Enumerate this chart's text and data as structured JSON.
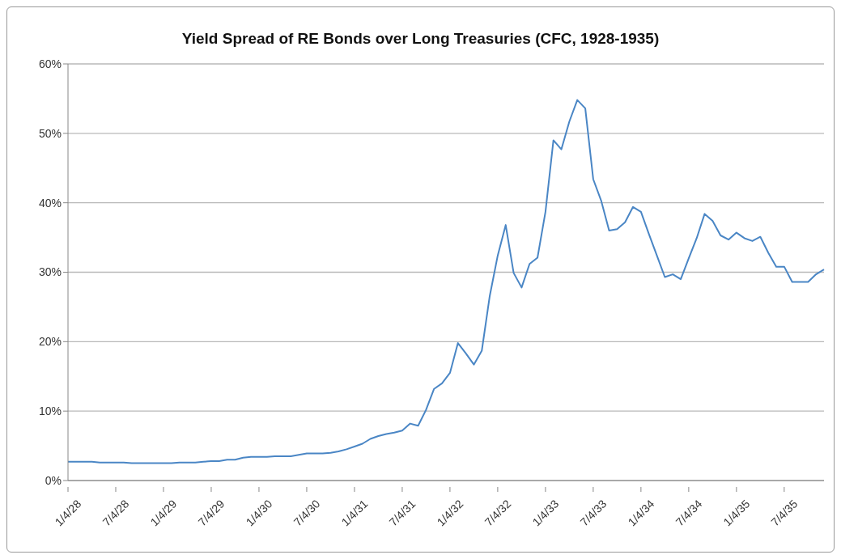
{
  "chart_data": {
    "type": "line",
    "title": "Yield Spread of RE Bonds over Long Treasuries (CFC, 1928-1935)",
    "categories": [
      "1/4/28",
      null,
      null,
      null,
      null,
      null,
      "7/4/28",
      null,
      null,
      null,
      null,
      null,
      "1/4/29",
      null,
      null,
      null,
      null,
      null,
      "7/4/29",
      null,
      null,
      null,
      null,
      null,
      "1/4/30",
      null,
      null,
      null,
      null,
      null,
      "7/4/30",
      null,
      null,
      null,
      null,
      null,
      "1/4/31",
      null,
      null,
      null,
      null,
      null,
      "7/4/31",
      null,
      null,
      null,
      null,
      null,
      "1/4/32",
      null,
      null,
      null,
      null,
      null,
      "7/4/32",
      null,
      null,
      null,
      null,
      null,
      "1/4/33",
      null,
      null,
      null,
      null,
      null,
      "7/4/33",
      null,
      null,
      null,
      null,
      null,
      "1/4/34",
      null,
      null,
      null,
      null,
      null,
      "7/4/34",
      null,
      null,
      null,
      null,
      null,
      "1/4/35",
      null,
      null,
      null,
      null,
      null,
      "7/4/35",
      null,
      null,
      null,
      null,
      null
    ],
    "series": [
      {
        "color": "#4a86c5",
        "values": [
          2.7,
          2.7,
          2.7,
          2.7,
          2.6,
          2.6,
          2.6,
          2.6,
          2.5,
          2.5,
          2.5,
          2.5,
          2.5,
          2.5,
          2.6,
          2.6,
          2.6,
          2.7,
          2.8,
          2.8,
          3.0,
          3.0,
          3.3,
          3.4,
          3.4,
          3.4,
          3.5,
          3.5,
          3.5,
          3.7,
          3.9,
          3.9,
          3.9,
          4.0,
          4.2,
          4.5,
          4.9,
          5.3,
          6.0,
          6.4,
          6.7,
          6.9,
          7.2,
          8.2,
          7.9,
          10.2,
          13.2,
          14.0,
          15.5,
          19.8,
          18.3,
          16.7,
          18.7,
          26.6,
          32.4,
          36.8,
          29.9,
          27.8,
          31.2,
          32.1,
          38.7,
          49.0,
          47.7,
          51.7,
          54.8,
          53.6,
          43.4,
          40.3,
          36.0,
          36.2,
          37.2,
          39.4,
          38.7,
          35.5,
          32.4,
          29.3,
          29.7,
          29.0,
          32.0,
          34.9,
          38.4,
          37.4,
          35.3,
          34.7,
          35.7,
          34.9,
          34.5,
          35.1,
          32.8,
          30.8,
          30.8,
          28.6,
          28.6,
          28.6,
          29.7,
          30.4
        ]
      }
    ],
    "ylim": [
      0,
      60
    ],
    "yticks": [
      {
        "value": 0,
        "label": "0%"
      },
      {
        "value": 10,
        "label": "10%"
      },
      {
        "value": 20,
        "label": "20%"
      },
      {
        "value": 30,
        "label": "30%"
      },
      {
        "value": 40,
        "label": "40%"
      },
      {
        "value": 50,
        "label": "50%"
      },
      {
        "value": 60,
        "label": "60%"
      }
    ],
    "grid": "y",
    "legend": false,
    "marker": "none",
    "line_style": "solid"
  }
}
